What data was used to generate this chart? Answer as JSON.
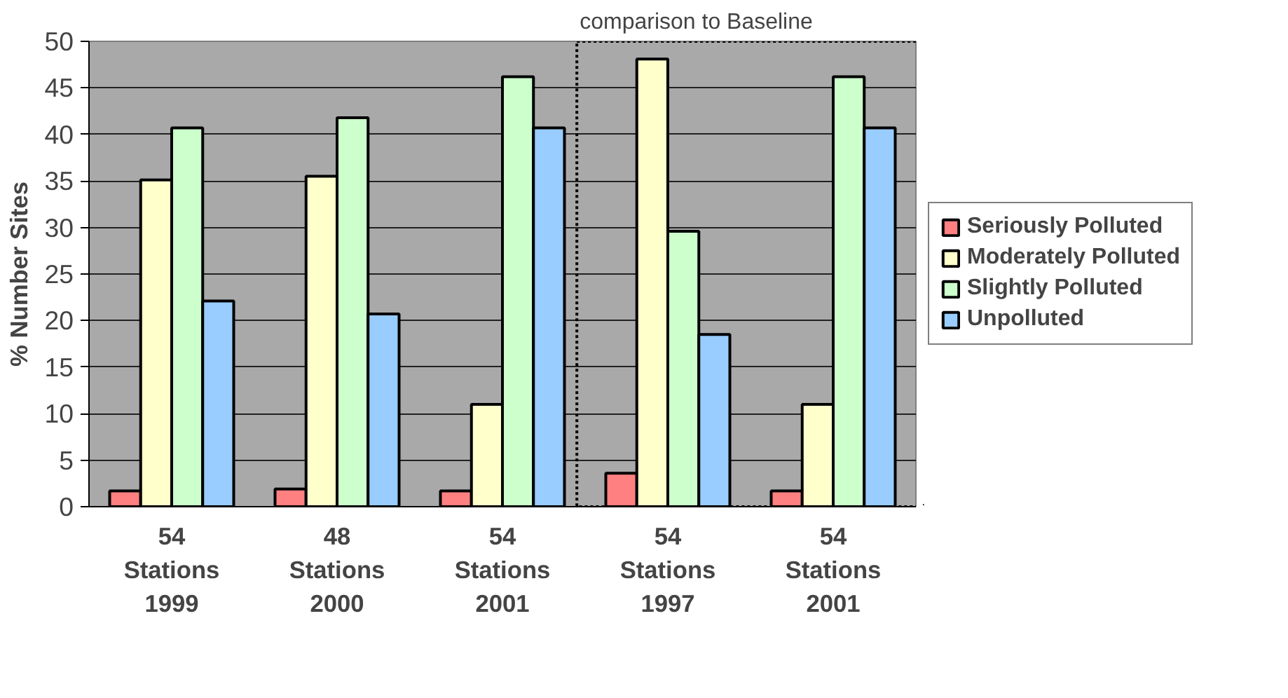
{
  "chart_data": {
    "type": "bar",
    "ylabel": "% Number Sites",
    "categories": [
      "54\nStations\n1999",
      "48\nStations\n2000",
      "54\nStations\n2001",
      "54\nStations\n1997",
      "54\nStations\n2001"
    ],
    "series": [
      {
        "name": "Seriously Polluted",
        "color": "#ff8080",
        "values": [
          1.7,
          1.9,
          1.7,
          3.6,
          1.7
        ]
      },
      {
        "name": "Moderately Polluted",
        "color": "#ffffcc",
        "values": [
          35.1,
          35.5,
          11.0,
          48.1,
          11.0
        ]
      },
      {
        "name": "Slightly Polluted",
        "color": "#ccffcc",
        "values": [
          40.7,
          41.8,
          46.2,
          29.6,
          46.2
        ]
      },
      {
        "name": "Unpolluted",
        "color": "#99ccff",
        "values": [
          22.1,
          20.7,
          40.7,
          18.5,
          40.7
        ]
      }
    ],
    "ylim": [
      0,
      50
    ],
    "yticks": [
      0,
      5,
      10,
      15,
      20,
      25,
      30,
      35,
      40,
      45,
      50
    ],
    "grid": "y",
    "legend": "right",
    "annotations": [
      "comparison to Baseline"
    ]
  }
}
